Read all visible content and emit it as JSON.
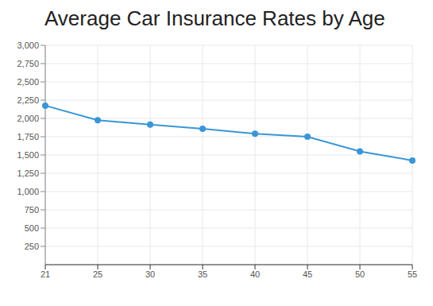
{
  "chart_data": {
    "type": "line",
    "title": "Average Car Insurance Rates by Age",
    "categories": [
      "21",
      "25",
      "30",
      "35",
      "40",
      "45",
      "50",
      "55"
    ],
    "values": [
      2175,
      1975,
      1915,
      1860,
      1790,
      1750,
      1550,
      1425
    ],
    "color": "#3a96d8",
    "marker": "circle",
    "ylim": [
      0,
      3000
    ],
    "yticks": [
      250,
      500,
      750,
      {
        "value": 1000,
        "label": "1,000"
      },
      {
        "value": 1250,
        "label": "1,250"
      },
      {
        "value": 1500,
        "label": "1,500"
      },
      {
        "value": 1750,
        "label": "1,750"
      },
      {
        "value": 2000,
        "label": "2,000"
      },
      {
        "value": 2250,
        "label": "2,250"
      },
      {
        "value": 2500,
        "label": "2,500"
      },
      {
        "value": 2750,
        "label": "2,750"
      },
      {
        "value": 3000,
        "label": "3,000"
      }
    ],
    "grid": true
  }
}
